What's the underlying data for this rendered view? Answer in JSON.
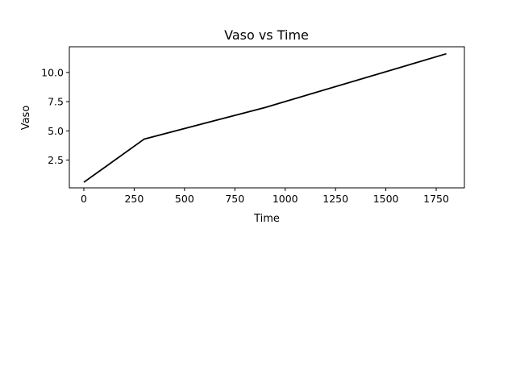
{
  "chart_data": {
    "type": "line",
    "title": "Vaso vs Time",
    "xlabel": "Time",
    "ylabel": "Vaso",
    "xlim": [
      -72,
      1890
    ],
    "ylim": [
      0.12,
      12.2
    ],
    "xticks": [
      0,
      250,
      500,
      750,
      1000,
      1250,
      1500,
      1750
    ],
    "xtick_labels": [
      "0",
      "250",
      "500",
      "750",
      "1000",
      "1250",
      "1500",
      "1750"
    ],
    "yticks": [
      2.5,
      5.0,
      7.5,
      10.0
    ],
    "ytick_labels": [
      "2.5",
      "5.0",
      "7.5",
      "10.0"
    ],
    "grid": false,
    "legend": "none",
    "series": [
      {
        "color": "#000000",
        "x": [
          0,
          300,
          900,
          1800
        ],
        "y": [
          0.6,
          4.3,
          7.0,
          11.6
        ]
      }
    ]
  }
}
